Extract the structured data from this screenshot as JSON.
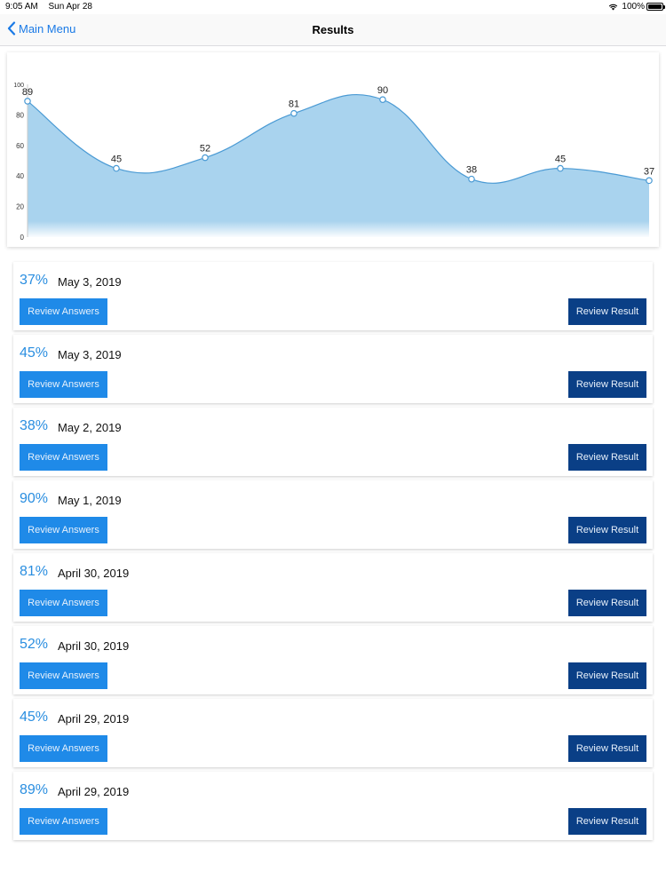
{
  "status_bar": {
    "time": "9:05 AM",
    "date": "Sun Apr 28",
    "battery": "100%"
  },
  "nav": {
    "back_label": "Main Menu",
    "title": "Results"
  },
  "chart_data": {
    "type": "area",
    "x": [
      1,
      2,
      3,
      4,
      5,
      6,
      7,
      8
    ],
    "values": [
      89,
      45,
      52,
      81,
      90,
      38,
      45,
      37
    ],
    "ylim": [
      0,
      100
    ],
    "yticks": [
      0,
      20,
      40,
      60,
      80,
      100
    ],
    "data_labels": true,
    "grid": false,
    "fill_color": "#a9d3ee",
    "line_color": "#4a9ad4"
  },
  "buttons": {
    "review_answers": "Review Answers",
    "review_result": "Review Result"
  },
  "results": [
    {
      "score": "37%",
      "date": "May 3, 2019"
    },
    {
      "score": "45%",
      "date": "May 3, 2019"
    },
    {
      "score": "38%",
      "date": "May 2, 2019"
    },
    {
      "score": "90%",
      "date": "May 1, 2019"
    },
    {
      "score": "81%",
      "date": "April 30, 2019"
    },
    {
      "score": "52%",
      "date": "April 30, 2019"
    },
    {
      "score": "45%",
      "date": "April 29, 2019"
    },
    {
      "score": "89%",
      "date": "April 29, 2019"
    }
  ],
  "colors": {
    "accent": "#1a7ae6",
    "answers_button": "#1f8ae8",
    "result_button": "#0a3f86",
    "score_text": "#2a8ee0"
  }
}
